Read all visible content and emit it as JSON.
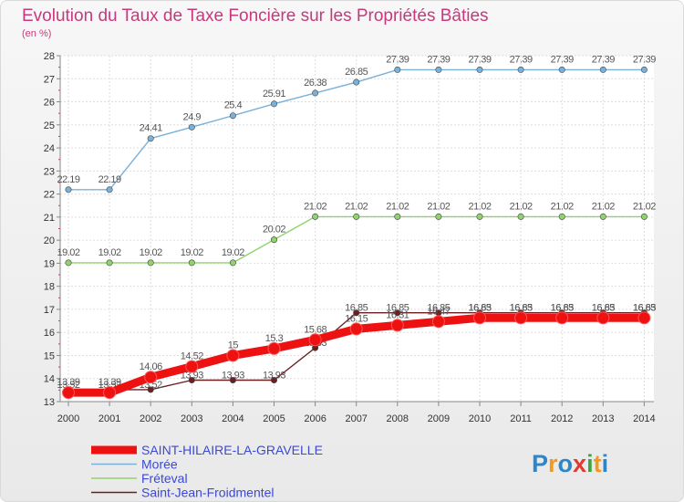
{
  "chart_data": {
    "type": "line",
    "title": "Evolution du Taux de Taxe Foncière sur les Propriétés Bâties",
    "subtitle": "(en %)",
    "x": [
      "2000",
      "2001",
      "2002",
      "2003",
      "2004",
      "2005",
      "2006",
      "2007",
      "2008",
      "2009",
      "2010",
      "2011",
      "2012",
      "2013",
      "2014"
    ],
    "yticks": [
      "13",
      "14",
      "15",
      "16",
      "17",
      "18",
      "19",
      "20",
      "21",
      "22",
      "23",
      "24",
      "25",
      "26",
      "27",
      "28"
    ],
    "ylim": [
      13,
      28
    ],
    "grid": true,
    "legend_position": "bottom-left",
    "series": [
      {
        "name": "Saint-Jean-Froidmentel",
        "color": "#6b1f22",
        "values": [
          13.52,
          13.52,
          13.52,
          13.93,
          13.93,
          13.93,
          15.33,
          16.85,
          16.85,
          16.85,
          16.85,
          16.85,
          16.85,
          16.85,
          16.85
        ],
        "labels": [
          "13.52",
          "13.52",
          "13.52",
          "13.93",
          "13.93",
          "13.93",
          "15.33",
          "16.85",
          "16.85",
          "16.85",
          "16.85",
          "16.85",
          "16.85",
          "16.85",
          "16.85"
        ],
        "label_side": "down"
      },
      {
        "name": "Fréteval",
        "color": "#8fd36b",
        "values": [
          19.02,
          19.02,
          19.02,
          19.02,
          19.02,
          20.02,
          21.02,
          21.02,
          21.02,
          21.02,
          21.02,
          21.02,
          21.02,
          21.02,
          21.02
        ],
        "labels": [
          "19.02",
          "19.02",
          "19.02",
          "19.02",
          "19.02",
          "20.02",
          "21.02",
          "21.02",
          "21.02",
          "21.02",
          "21.02",
          "21.02",
          "21.02",
          "21.02",
          "21.02"
        ],
        "label_side": "up"
      },
      {
        "name": "Morée",
        "color": "#7bb0d8",
        "values": [
          22.19,
          22.19,
          24.41,
          24.9,
          25.4,
          25.91,
          26.38,
          26.85,
          27.39,
          27.39,
          27.39,
          27.39,
          27.39,
          27.39,
          27.39
        ],
        "labels": [
          "22.19",
          "22.19",
          "24.41",
          "24.9",
          "25.4",
          "25.91",
          "26.38",
          "26.85",
          "27.39",
          "27.39",
          "27.39",
          "27.39",
          "27.39",
          "27.39",
          "27.39"
        ],
        "label_side": "up"
      },
      {
        "name": "SAINT-HILAIRE-LA-GRAVELLE",
        "color": "#ee1111",
        "values": [
          13.39,
          13.39,
          14.06,
          14.52,
          15,
          15.3,
          15.68,
          16.15,
          16.31,
          16.47,
          16.63,
          16.63,
          16.63,
          16.63,
          16.63
        ],
        "labels": [
          "13.39",
          "13.39",
          "14.06",
          "14.52",
          "15",
          "15.3",
          "15.68",
          "16.15",
          "16.31",
          "16.47",
          "16.63",
          "16.63",
          "16.63",
          "16.63",
          "16.63"
        ],
        "label_side": "up",
        "emphasis": true
      }
    ],
    "legend": [
      "SAINT-HILAIRE-LA-GRAVELLE",
      "Morée",
      "Fréteval",
      "Saint-Jean-Froidmentel"
    ]
  },
  "logo": {
    "letters": [
      "P",
      "r",
      "o",
      "x",
      "i",
      "t",
      "i"
    ],
    "colors": [
      "#2e86c8",
      "#f39a1c",
      "#2e86c8",
      "#e23a2e",
      "#3aa83a",
      "#f39a1c",
      "#2e86c8"
    ]
  }
}
